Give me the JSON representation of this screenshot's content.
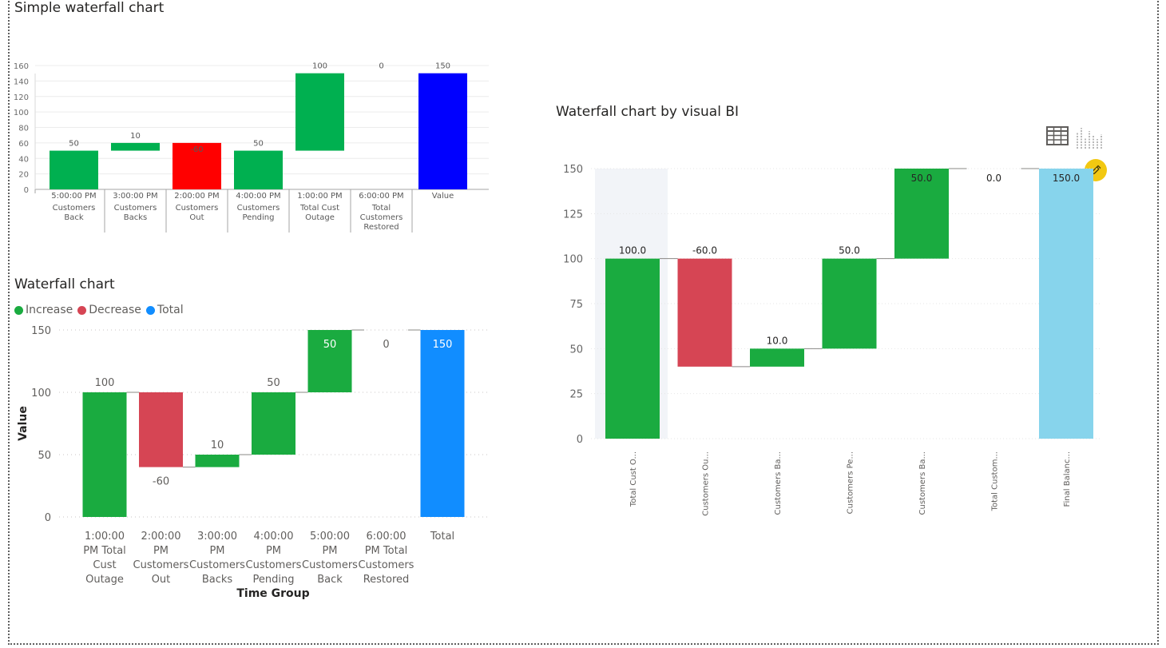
{
  "colors": {
    "increase": "#00b050",
    "decrease": "#ff0000",
    "total": "#0000ff",
    "pbi_increase": "#1aab40",
    "pbi_decrease": "#d64554",
    "pbi_total": "#118dff",
    "vbi_increase": "#1aab40",
    "vbi_decrease": "#d64554",
    "vbi_total": "#87d4ec",
    "connector": "#8a8886",
    "gridline": "#e1dfdd"
  },
  "visuals": {
    "simple": {
      "title": "Simple waterfall chart"
    },
    "pbi": {
      "title": "Waterfall chart",
      "legend": [
        {
          "label": "Increase",
          "color": "#1aab40"
        },
        {
          "label": "Decrease",
          "color": "#d64554"
        },
        {
          "label": "Total",
          "color": "#118dff"
        }
      ]
    },
    "vbi": {
      "title": "Waterfall chart by visual BI",
      "icons": [
        "table-icon",
        "chart-icon",
        "edit-pencil-icon"
      ]
    }
  },
  "chart_data": [
    {
      "type": "bar",
      "title": "Simple waterfall chart",
      "ylim": [
        0,
        160
      ],
      "yticks": [
        0,
        20,
        40,
        60,
        80,
        100,
        120,
        140,
        160
      ],
      "grid": true,
      "categories": [
        {
          "time": "5:00:00 PM",
          "label": [
            "Customers",
            "Back"
          ]
        },
        {
          "time": "3:00:00 PM",
          "label": [
            "Customers",
            "Backs"
          ]
        },
        {
          "time": "2:00:00 PM",
          "label": [
            "Customers",
            "Out"
          ]
        },
        {
          "time": "4:00:00 PM",
          "label": [
            "Customers",
            "Pending"
          ]
        },
        {
          "time": "1:00:00 PM",
          "label": [
            "Total Cust",
            "Outage"
          ]
        },
        {
          "time": "6:00:00 PM",
          "label": [
            "Total",
            "Customers",
            "Restored"
          ]
        },
        {
          "time": "Value",
          "label": []
        }
      ],
      "bars": [
        {
          "start": 0,
          "end": 50,
          "label": "50",
          "kind": "increase"
        },
        {
          "start": 50,
          "end": 60,
          "label": "10",
          "kind": "increase"
        },
        {
          "start": 0,
          "end": 60,
          "label": "-60",
          "kind": "decrease"
        },
        {
          "start": 0,
          "end": 50,
          "label": "50",
          "kind": "increase"
        },
        {
          "start": 50,
          "end": 150,
          "label": "100",
          "kind": "increase"
        },
        {
          "start": 150,
          "end": 150,
          "label": "0",
          "kind": "increase"
        },
        {
          "start": 0,
          "end": 150,
          "label": "150",
          "kind": "total"
        }
      ]
    },
    {
      "type": "bar",
      "title": "Waterfall chart",
      "xlabel": "Time Group",
      "ylabel": "Value",
      "ylim": [
        0,
        150
      ],
      "yticks": [
        0,
        50,
        100,
        150
      ],
      "grid": true,
      "legend_position": "top-left",
      "categories": [
        [
          "1:00:00",
          "PM Total",
          "Cust",
          "Outage"
        ],
        [
          "2:00:00",
          "PM",
          "Customers",
          "Out"
        ],
        [
          "3:00:00",
          "PM",
          "Customers",
          "Backs"
        ],
        [
          "4:00:00",
          "PM",
          "Customers",
          "Pending"
        ],
        [
          "5:00:00",
          "PM",
          "Customers",
          "Back"
        ],
        [
          "6:00:00",
          "PM Total",
          "Customers",
          "Restored"
        ],
        [
          "Total"
        ]
      ],
      "bars": [
        {
          "start": 0,
          "end": 100,
          "label": "100",
          "kind": "increase"
        },
        {
          "start": 100,
          "end": 40,
          "label": "-60",
          "kind": "decrease"
        },
        {
          "start": 40,
          "end": 50,
          "label": "10",
          "kind": "increase"
        },
        {
          "start": 50,
          "end": 100,
          "label": "50",
          "kind": "increase"
        },
        {
          "start": 100,
          "end": 150,
          "label": "50",
          "kind": "increase"
        },
        {
          "start": 150,
          "end": 150,
          "label": "0",
          "kind": "increase"
        },
        {
          "start": 0,
          "end": 150,
          "label": "150",
          "kind": "total"
        }
      ]
    },
    {
      "type": "bar",
      "title": "Waterfall chart by visual BI",
      "ylim": [
        0,
        150
      ],
      "yticks": [
        0,
        25,
        50,
        75,
        100,
        125,
        150
      ],
      "grid": true,
      "categories": [
        "Total Cust O...",
        "Customers Ou...",
        "Customers Ba...",
        "Customers Pe...",
        "Customers Ba...",
        "Total Custom...",
        "Final Balanc..."
      ],
      "bars": [
        {
          "start": 0,
          "end": 100,
          "label": "100.0",
          "kind": "increase"
        },
        {
          "start": 100,
          "end": 40,
          "label": "-60.0",
          "kind": "decrease"
        },
        {
          "start": 40,
          "end": 50,
          "label": "10.0",
          "kind": "increase"
        },
        {
          "start": 50,
          "end": 100,
          "label": "50.0",
          "kind": "increase"
        },
        {
          "start": 100,
          "end": 150,
          "label": "50.0",
          "kind": "increase"
        },
        {
          "start": 150,
          "end": 150,
          "label": "0.0",
          "kind": "increase"
        },
        {
          "start": 0,
          "end": 150,
          "label": "150.0",
          "kind": "total"
        }
      ]
    }
  ]
}
